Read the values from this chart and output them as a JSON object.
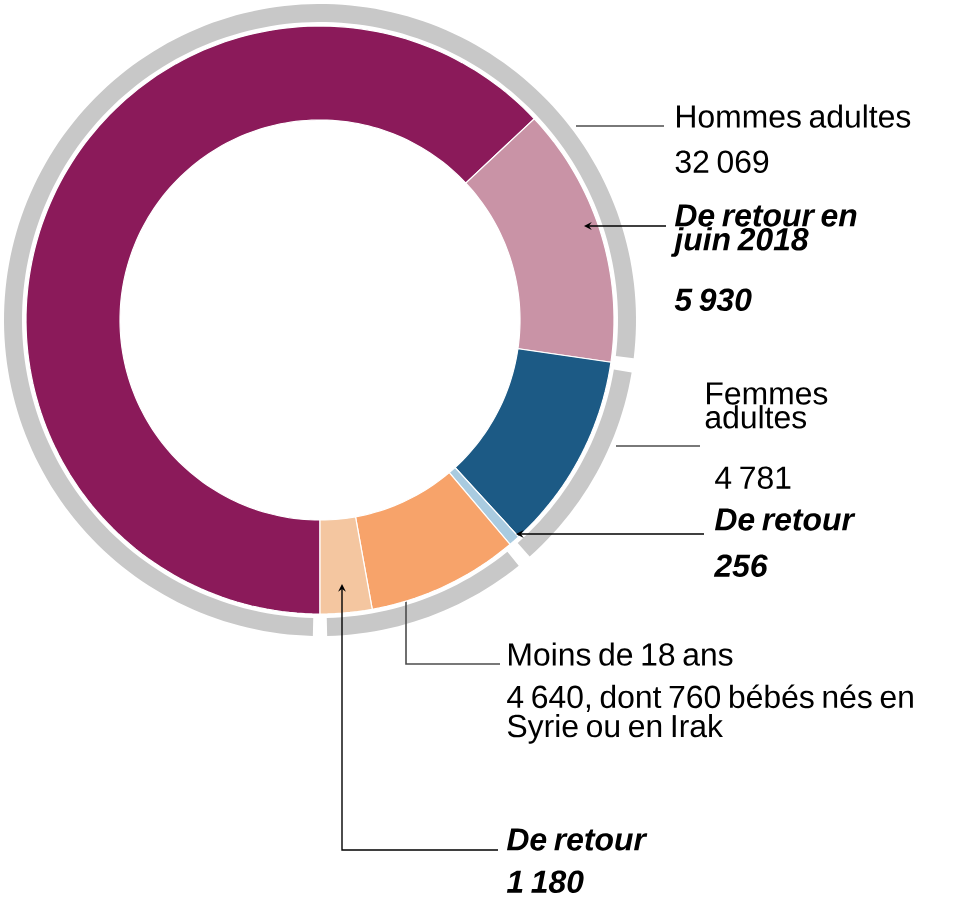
{
  "chart_data": [
    {
      "type": "donut",
      "categories": [
        "Hommes adultes",
        "Femmes adultes",
        "Moins de 18 ans"
      ],
      "values": [
        32069,
        4781,
        4640
      ],
      "colors": [
        "#c8c8c8",
        "#c8c8c8",
        "#c8c8c8"
      ],
      "value_labels": [
        "32 069",
        "4 781",
        "4 640, dont 760 bébés nés en Syrie ou en Irak"
      ]
    },
    {
      "type": "donut",
      "categories": [
        null,
        "De retour en juin 2018",
        null,
        "De retour",
        null,
        "De retour"
      ],
      "values": [
        26139,
        5930,
        4525,
        256,
        3460,
        1180
      ],
      "colors": [
        "#8b1a5a",
        "#c993a6",
        "#1c5a85",
        "#a9cbe0",
        "#f7a36a",
        "#f4c6a0"
      ],
      "value_labels": [
        null,
        "5 930",
        null,
        "256",
        null,
        "1 180"
      ]
    }
  ]
}
